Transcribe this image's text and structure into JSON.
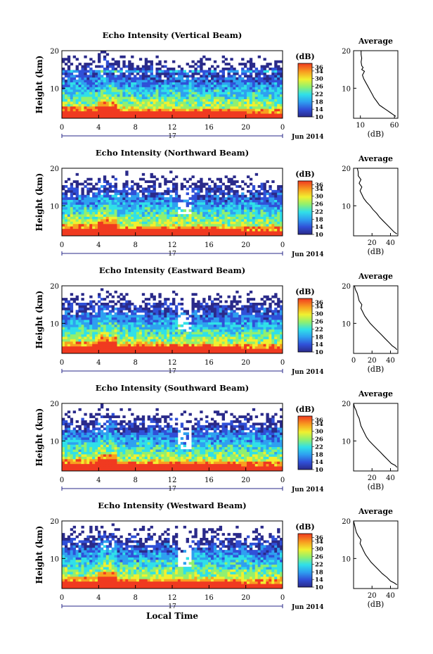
{
  "chart_data": {
    "type": "heatmap",
    "xlabel": "Local Time",
    "date_label": "Jun 2014",
    "day_label": "17",
    "xticks": [
      "0",
      "4",
      "8",
      "12",
      "16",
      "20",
      "0"
    ],
    "ylabel": "Height (km)",
    "yticks": [
      "20",
      "10"
    ],
    "ylim": [
      2,
      20
    ],
    "colorbar": {
      "label": "(dB)",
      "ticks": [
        "36",
        "34",
        "30",
        "26",
        "22",
        "18",
        "14",
        "10"
      ],
      "range": [
        10,
        38
      ]
    },
    "average_title": "Average",
    "average_xlabel": "(dB)",
    "panels": [
      {
        "title": "Echo Intensity (Vertical Beam)",
        "avg_xticks": [
          "10",
          "60"
        ],
        "avg_xlim": [
          0,
          65
        ],
        "avg_profile": [
          [
            62,
            2.5
          ],
          [
            58,
            3
          ],
          [
            54,
            3.5
          ],
          [
            50,
            4
          ],
          [
            46,
            4.5
          ],
          [
            42,
            5
          ],
          [
            38,
            5.5
          ],
          [
            34,
            6.5
          ],
          [
            30,
            7.5
          ],
          [
            27,
            8.5
          ],
          [
            24,
            9.5
          ],
          [
            21,
            10.5
          ],
          [
            18,
            11.5
          ],
          [
            15,
            12.5
          ],
          [
            13,
            13.5
          ],
          [
            16,
            14.5
          ],
          [
            12,
            15
          ],
          [
            14,
            15.5
          ],
          [
            12,
            16
          ],
          [
            11,
            17
          ],
          [
            12,
            18
          ],
          [
            11,
            19
          ],
          [
            11,
            20
          ]
        ]
      },
      {
        "title": "Echo Intensity (Northward Beam)",
        "avg_xticks": [
          "20",
          "40"
        ],
        "avg_xlim": [
          0,
          48
        ],
        "avg_profile": [
          [
            47,
            2.5
          ],
          [
            44,
            3
          ],
          [
            40,
            4
          ],
          [
            36,
            5
          ],
          [
            32,
            6
          ],
          [
            28,
            7
          ],
          [
            25,
            8
          ],
          [
            21,
            9
          ],
          [
            18,
            10
          ],
          [
            14,
            11
          ],
          [
            11,
            12
          ],
          [
            9,
            13
          ],
          [
            7,
            14
          ],
          [
            9,
            15
          ],
          [
            6,
            16
          ],
          [
            8,
            17
          ],
          [
            5,
            18
          ],
          [
            5,
            19
          ],
          [
            4,
            20
          ]
        ]
      },
      {
        "title": "Echo Intensity (Eastward Beam)",
        "avg_xticks": [
          "0",
          "20",
          "40"
        ],
        "avg_xlim": [
          0,
          48
        ],
        "avg_profile": [
          [
            47,
            3
          ],
          [
            45,
            3.5
          ],
          [
            42,
            4
          ],
          [
            38,
            5
          ],
          [
            34,
            6
          ],
          [
            30,
            7
          ],
          [
            26,
            8
          ],
          [
            22,
            9
          ],
          [
            18,
            10
          ],
          [
            15,
            11
          ],
          [
            12,
            12
          ],
          [
            10,
            13
          ],
          [
            8,
            14
          ],
          [
            9,
            15
          ],
          [
            6,
            16
          ],
          [
            5,
            17
          ],
          [
            4,
            18
          ],
          [
            2,
            19
          ],
          [
            1,
            20
          ]
        ]
      },
      {
        "title": "Echo Intensity (Southward Beam)",
        "avg_xticks": [
          "20",
          "40"
        ],
        "avg_xlim": [
          0,
          48
        ],
        "avg_profile": [
          [
            47,
            3
          ],
          [
            45,
            3.5
          ],
          [
            41,
            4
          ],
          [
            37,
            5
          ],
          [
            33,
            6
          ],
          [
            29,
            7
          ],
          [
            25,
            8
          ],
          [
            21,
            9
          ],
          [
            17,
            10
          ],
          [
            14,
            11
          ],
          [
            12,
            12
          ],
          [
            10,
            13
          ],
          [
            8,
            14
          ],
          [
            7,
            15
          ],
          [
            6,
            16
          ],
          [
            4,
            17
          ],
          [
            3,
            18
          ],
          [
            1,
            19
          ],
          [
            0,
            20
          ]
        ]
      },
      {
        "title": "Echo Intensity (Westward Beam)",
        "avg_xticks": [
          "20",
          "40"
        ],
        "avg_xlim": [
          0,
          48
        ],
        "avg_profile": [
          [
            47,
            3
          ],
          [
            44,
            3.5
          ],
          [
            40,
            4
          ],
          [
            36,
            5
          ],
          [
            31,
            6
          ],
          [
            27,
            7
          ],
          [
            23,
            8
          ],
          [
            19,
            9
          ],
          [
            16,
            10
          ],
          [
            13,
            11
          ],
          [
            11,
            12
          ],
          [
            9,
            13
          ],
          [
            7,
            14
          ],
          [
            8,
            15
          ],
          [
            5,
            16
          ],
          [
            3,
            17
          ],
          [
            2,
            18
          ],
          [
            1,
            19
          ],
          [
            0,
            20
          ]
        ]
      }
    ]
  }
}
